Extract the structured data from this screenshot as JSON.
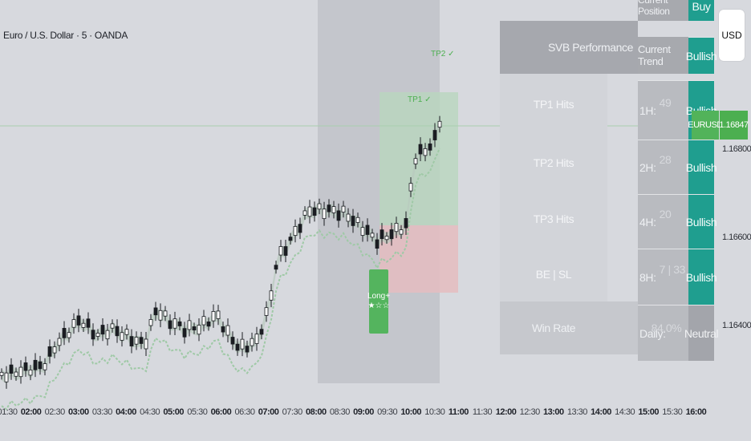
{
  "header": {
    "title": "Euro / U.S. Dollar · 5 · OANDA"
  },
  "currency_button": "USD",
  "price_tag": {
    "symbol": "EURUSD",
    "price": "1.16847"
  },
  "y_axis": {
    "labels": [
      "1.16800",
      "1.16600",
      "1.16400"
    ]
  },
  "x_axis": {
    "labels": [
      {
        "t": "01:30",
        "bold": false
      },
      {
        "t": "02:00",
        "bold": true
      },
      {
        "t": "02:30",
        "bold": false
      },
      {
        "t": "03:00",
        "bold": true
      },
      {
        "t": "03:30",
        "bold": false
      },
      {
        "t": "04:00",
        "bold": true
      },
      {
        "t": "04:30",
        "bold": false
      },
      {
        "t": "05:00",
        "bold": true
      },
      {
        "t": "05:30",
        "bold": false
      },
      {
        "t": "06:00",
        "bold": true
      },
      {
        "t": "06:30",
        "bold": false
      },
      {
        "t": "07:00",
        "bold": true
      },
      {
        "t": "07:30",
        "bold": false
      },
      {
        "t": "08:00",
        "bold": true
      },
      {
        "t": "08:30",
        "bold": false
      },
      {
        "t": "09:00",
        "bold": true
      },
      {
        "t": "09:30",
        "bold": false
      },
      {
        "t": "10:00",
        "bold": true
      },
      {
        "t": "10:30",
        "bold": false
      },
      {
        "t": "11:00",
        "bold": true
      },
      {
        "t": "11:30",
        "bold": false
      },
      {
        "t": "12:00",
        "bold": true
      },
      {
        "t": "12:30",
        "bold": false
      },
      {
        "t": "13:00",
        "bold": true
      },
      {
        "t": "13:30",
        "bold": false
      },
      {
        "t": "14:00",
        "bold": true
      },
      {
        "t": "14:30",
        "bold": false
      },
      {
        "t": "15:00",
        "bold": true
      },
      {
        "t": "15:30",
        "bold": false
      },
      {
        "t": "16:00",
        "bold": true
      }
    ]
  },
  "signal": {
    "label_line1": "Long+",
    "label_line2": "★☆☆"
  },
  "trade_labels": {
    "tp1": "TP1 ✓",
    "tp2": "TP2 ✓"
  },
  "performance": {
    "title": "SVB Performance",
    "rows": [
      {
        "label": "TP1 Hits"
      },
      {
        "label": "TP2 Hits"
      },
      {
        "label": "TP3 Hits"
      },
      {
        "label": "BE | SL"
      }
    ],
    "win_rate_label": "Win Rate"
  },
  "trend": {
    "current_position_label": "Current Position",
    "current_position_value": "Buy",
    "current_trend_label": "Current Trend",
    "current_trend_value": "Bullish",
    "rows": [
      {
        "tf": "1H:",
        "count": "49",
        "signal": "Bullish"
      },
      {
        "tf": "2H:",
        "count": "28",
        "signal": "Bullish"
      },
      {
        "tf": "4H:",
        "count": "20",
        "signal": "Bullish"
      },
      {
        "tf": "8H:",
        "count": "7 | 33",
        "signal": "Bullish"
      },
      {
        "tf": "Daily:",
        "count": "84.0%",
        "signal": "Neutral"
      }
    ]
  },
  "colors": {
    "bull": "#26a69a",
    "bear": "#ef5350",
    "accent": "#4caf50",
    "signal_green": "#1f9e8f"
  }
}
